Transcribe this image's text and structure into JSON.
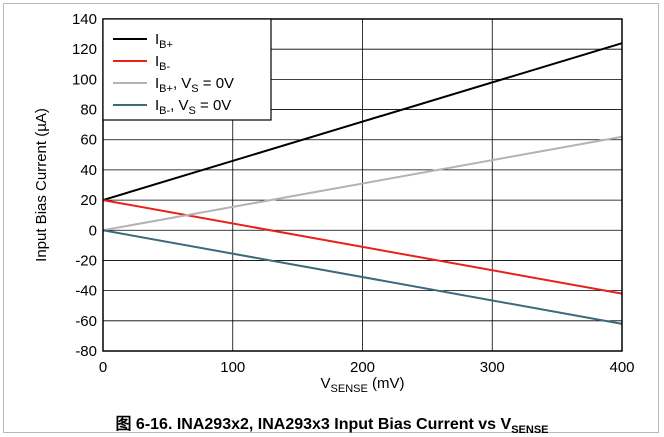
{
  "chart_data": {
    "type": "line",
    "xlabel_main": "V",
    "xlabel_sub": "SENSE",
    "xlabel_unit": " (mV)",
    "ylabel": "Input Bias Current (µA)",
    "xlim": [
      0,
      400
    ],
    "ylim": [
      -80,
      140
    ],
    "x_ticks": [
      0,
      100,
      200,
      300,
      400
    ],
    "y_ticks": [
      -80,
      -60,
      -40,
      -20,
      0,
      20,
      40,
      60,
      80,
      100,
      120,
      140
    ],
    "x_tick_labels": [
      "0",
      "100",
      "200",
      "300",
      "400"
    ],
    "y_tick_labels": [
      "-80",
      "-60",
      "-40",
      "-20",
      "0",
      "20",
      "40",
      "60",
      "80",
      "100",
      "120",
      "140"
    ],
    "grid": true,
    "legend_position": "top-left",
    "series": [
      {
        "name_main": "I",
        "name_sub": "B+",
        "name_rest": "",
        "color": "#000000",
        "x": [
          0,
          400
        ],
        "y": [
          20,
          124
        ]
      },
      {
        "name_main": "I",
        "name_sub": "B-",
        "name_rest": "",
        "color": "#e8211b",
        "x": [
          0,
          400
        ],
        "y": [
          20,
          -42
        ]
      },
      {
        "name_main": "I",
        "name_sub": "B+",
        "name_rest": ", V",
        "name_sub2": "S",
        "name_rest2": " = 0V",
        "color": "#b3b3b3",
        "x": [
          0,
          400
        ],
        "y": [
          0,
          62
        ]
      },
      {
        "name_main": "I",
        "name_sub": "B-",
        "name_rest": ", V",
        "name_sub2": "S",
        "name_rest2": " = 0V",
        "color": "#3a6a7c",
        "x": [
          0,
          400
        ],
        "y": [
          0,
          -62
        ]
      }
    ]
  },
  "caption": {
    "prefix": "图 6-16. INA293x2, INA293x3 Input Bias Current vs V",
    "sub": "SENSE"
  }
}
